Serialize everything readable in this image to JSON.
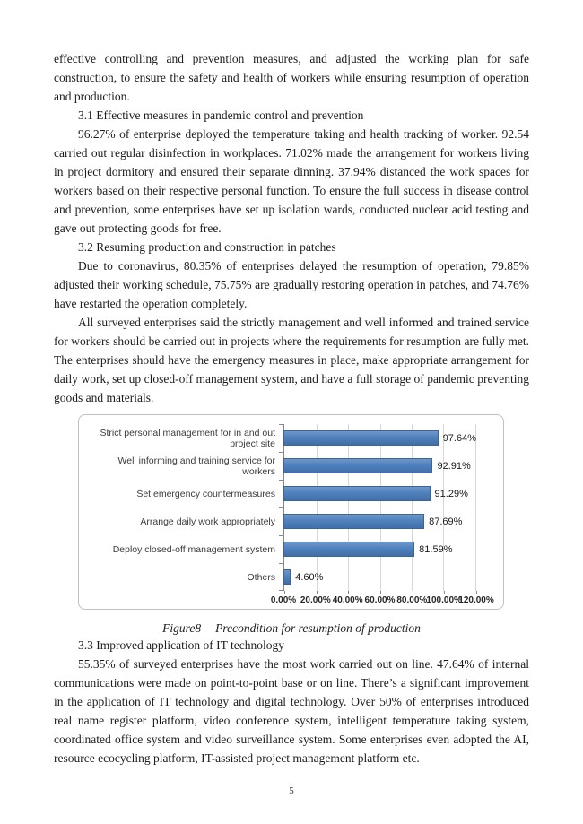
{
  "page": {
    "number": "5"
  },
  "document": {
    "intro_continuation": "effective controlling and prevention measures, and adjusted the working plan for safe construction, to ensure the safety and health of workers while ensuring resumption of operation and production.",
    "sections": [
      {
        "heading": "3.1 Effective measures in pandemic control and prevention",
        "paragraphs": [
          "96.27% of enterprise deployed the temperature taking and health tracking of worker. 92.54 carried out regular disinfection in workplaces. 71.02% made the arrangement for workers living in project dormitory and ensured their separate dinning. 37.94% distanced the work spaces for workers based on their respective personal function. To ensure the full success in disease control and prevention, some enterprises have set up isolation wards, conducted nuclear acid testing and gave out protecting goods for free."
        ]
      },
      {
        "heading": "3.2 Resuming production and construction in patches",
        "paragraphs": [
          "Due to coronavirus, 80.35% of enterprises delayed the resumption of operation, 79.85% adjusted their working schedule, 75.75% are gradually restoring operation in patches, and 74.76% have restarted the operation completely.",
          "All surveyed enterprises said the strictly management and well informed and trained service for workers should be carried out in projects where the requirements for resumption are fully met. The enterprises should have the emergency measures in place, make appropriate arrangement for daily work, set up closed-off management system, and have a full storage of pandemic preventing goods and materials."
        ]
      },
      {
        "heading": "3.3 Improved application of IT technology",
        "paragraphs": [
          "55.35% of surveyed enterprises have the most work carried out on line. 47.64% of internal communications were made on point-to-point base or on line. There’s a significant improvement in the application of IT technology and digital technology. Over 50% of enterprises introduced real name register platform, video conference system, intelligent temperature taking system, coordinated office system and video surveillance system. Some enterprises even adopted the AI, resource ecocycling platform, IT-assisted project management platform etc."
        ]
      }
    ],
    "figure_caption": {
      "label": "Figure8",
      "text": "Precondition for resumption of production"
    }
  },
  "chart_data": {
    "type": "bar",
    "orientation": "horizontal",
    "title": "",
    "xlabel": "",
    "ylabel": "",
    "categories": [
      "Strict personal management for in and out project site",
      "Well informing and training service for workers",
      "Set emergency countermeasures",
      "Arrange daily work appropriately",
      "Deploy closed-off management system",
      "Others"
    ],
    "values": [
      97.64,
      92.91,
      91.29,
      87.69,
      81.59,
      4.6
    ],
    "data_labels": [
      "97.64%",
      "92.91%",
      "91.29%",
      "87.69%",
      "81.59%",
      "4.60%"
    ],
    "x_ticks": [
      "0.00%",
      "20.00%",
      "40.00%",
      "60.00%",
      "80.00%",
      "100.00%",
      "120.00%"
    ],
    "xlim": [
      0,
      120
    ],
    "grid": true,
    "legend": "none",
    "bar_color": "#4f81bd",
    "bar_border_color": "#3a659c",
    "gridline_color": "#d7d7d7",
    "axis_line_color": "#898989"
  }
}
